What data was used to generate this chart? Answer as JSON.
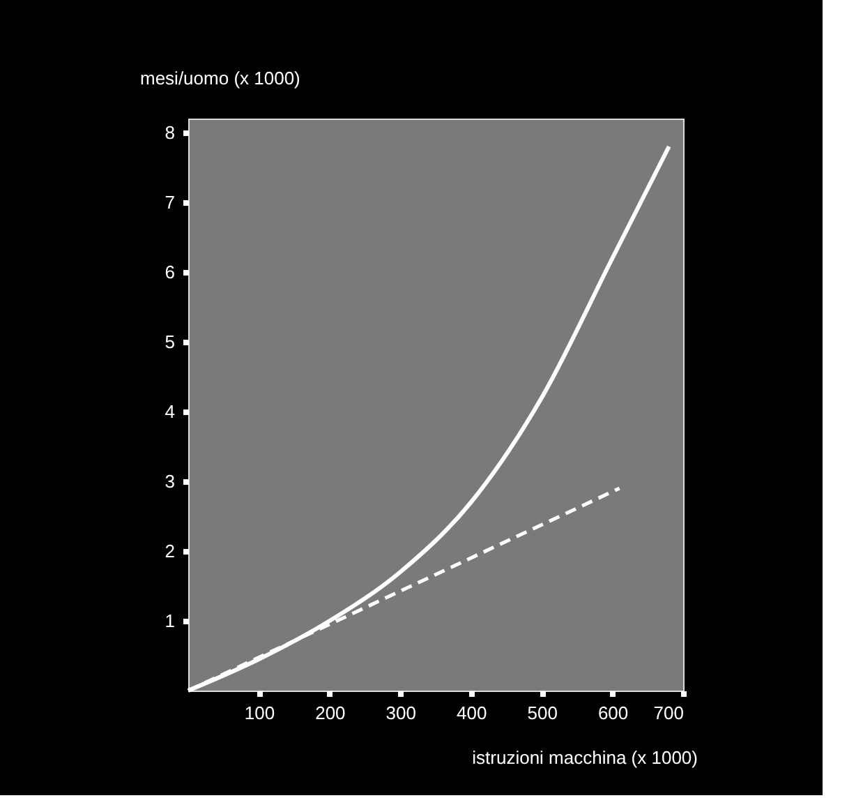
{
  "chart_data": {
    "type": "line",
    "xlabel": "istruzioni macchina (x 1000)",
    "ylabel": "mesi/uomo (x 1000)",
    "xlim": [
      0,
      700
    ],
    "ylim": [
      0,
      8.2
    ],
    "xticks": [
      100,
      200,
      300,
      400,
      500,
      600,
      700
    ],
    "yticks": [
      1,
      2,
      3,
      4,
      5,
      6,
      7,
      8
    ],
    "grid": false,
    "marker": "none",
    "series": [
      {
        "color": "#ffffff",
        "line_style": "solid",
        "x": [
          0,
          100,
          200,
          300,
          400,
          500,
          600,
          680
        ],
        "values": [
          0,
          0.45,
          1.0,
          1.7,
          2.7,
          4.2,
          6.2,
          7.8
        ]
      },
      {
        "color": "#ffffff",
        "line_style": "dashed",
        "x": [
          0,
          610
        ],
        "values": [
          0,
          2.9
        ]
      }
    ]
  }
}
